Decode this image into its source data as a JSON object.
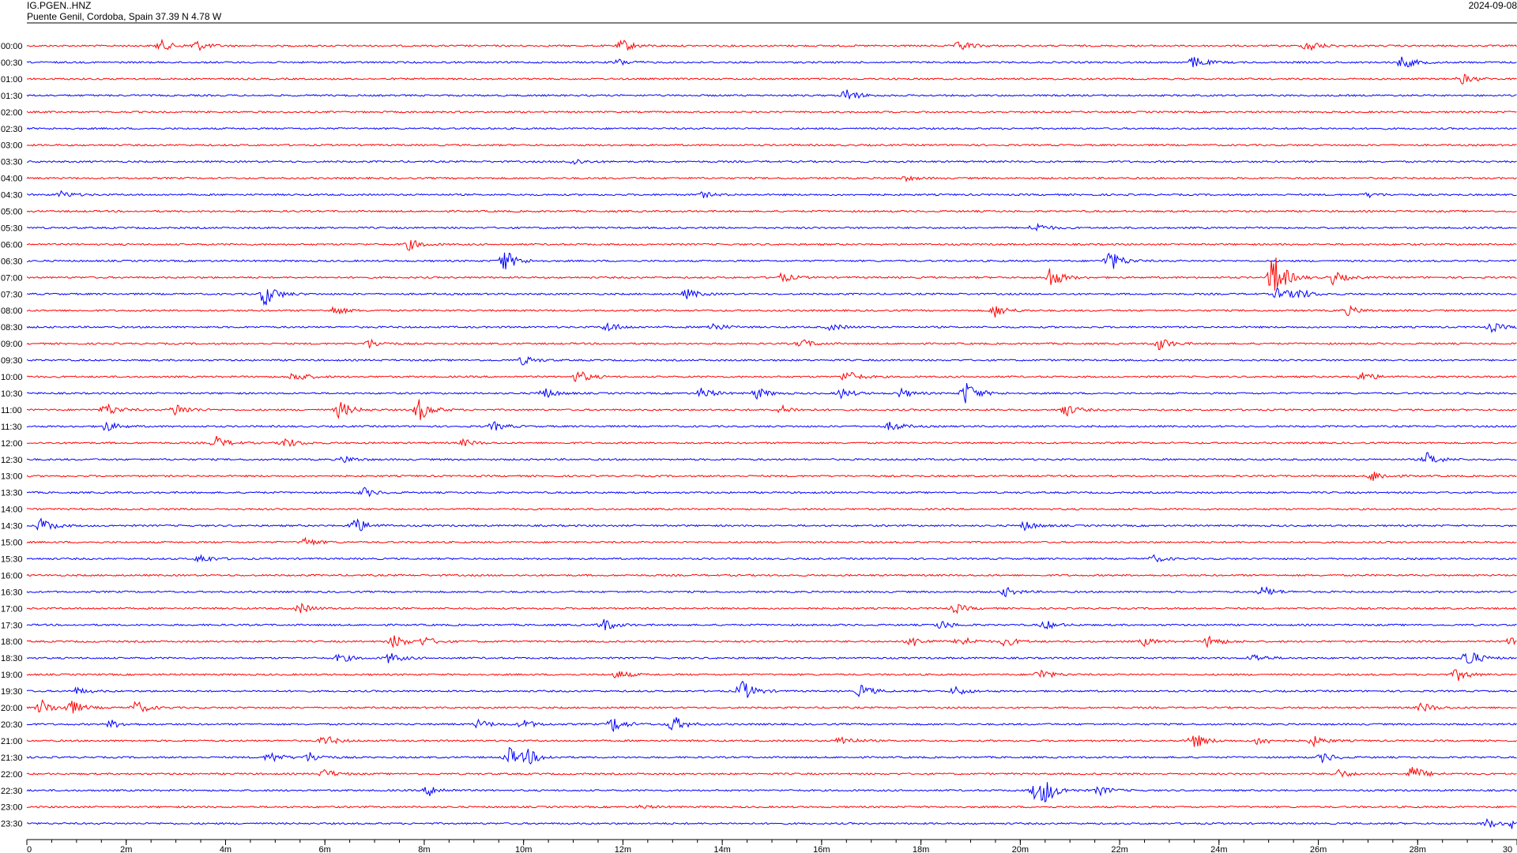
{
  "header": {
    "station": "IG.PGEN..HNZ",
    "location": "Puente Genil, Cordoba, Spain  37.39 N 4.78 W",
    "date": "2024-09-08"
  },
  "colors": {
    "even_trace": "#ff0000",
    "odd_trace": "#0000ff",
    "axis": "#000000"
  },
  "chart_data": {
    "type": "line",
    "title": "",
    "xlabel": "",
    "ylabel": "",
    "xlim": [
      0,
      30
    ],
    "x_unit": "minutes",
    "x_ticks": [
      {
        "value": 0,
        "label": "0"
      },
      {
        "value": 2,
        "label": "2m"
      },
      {
        "value": 4,
        "label": "4m"
      },
      {
        "value": 6,
        "label": "6m"
      },
      {
        "value": 8,
        "label": "8m"
      },
      {
        "value": 10,
        "label": "10m"
      },
      {
        "value": 12,
        "label": "12m"
      },
      {
        "value": 14,
        "label": "14m"
      },
      {
        "value": 16,
        "label": "16m"
      },
      {
        "value": 18,
        "label": "18m"
      },
      {
        "value": 20,
        "label": "20m"
      },
      {
        "value": 22,
        "label": "22m"
      },
      {
        "value": 24,
        "label": "24m"
      },
      {
        "value": 26,
        "label": "26m"
      },
      {
        "value": 28,
        "label": "28m"
      },
      {
        "value": 30,
        "label": "30"
      }
    ],
    "rows": [
      {
        "label": "00:00",
        "events": [
          [
            2.7,
            0.5
          ],
          [
            3.4,
            0.5
          ],
          [
            12.0,
            0.55
          ],
          [
            18.8,
            0.5
          ],
          [
            25.8,
            0.55
          ]
        ]
      },
      {
        "label": "00:30",
        "events": [
          [
            11.9,
            0.3
          ],
          [
            23.5,
            0.55
          ],
          [
            27.7,
            0.6
          ]
        ]
      },
      {
        "label": "01:00",
        "events": [
          [
            28.9,
            0.45
          ]
        ]
      },
      {
        "label": "01:30",
        "events": [
          [
            16.5,
            0.6
          ]
        ]
      },
      {
        "label": "02:00",
        "events": []
      },
      {
        "label": "02:30",
        "events": []
      },
      {
        "label": "03:00",
        "events": []
      },
      {
        "label": "03:30",
        "events": [
          [
            11.0,
            0.3
          ]
        ]
      },
      {
        "label": "04:00",
        "events": [
          [
            17.7,
            0.2
          ]
        ]
      },
      {
        "label": "04:30",
        "events": [
          [
            0.7,
            0.3
          ],
          [
            13.6,
            0.25
          ],
          [
            27.0,
            0.2
          ]
        ]
      },
      {
        "label": "05:00",
        "events": []
      },
      {
        "label": "05:30",
        "events": [
          [
            20.3,
            0.45
          ]
        ]
      },
      {
        "label": "06:00",
        "events": [
          [
            7.7,
            0.5
          ]
        ]
      },
      {
        "label": "06:30",
        "events": [
          [
            9.6,
            1.1
          ],
          [
            21.8,
            1.0
          ]
        ]
      },
      {
        "label": "07:00",
        "events": [
          [
            15.2,
            0.4
          ],
          [
            20.6,
            1.0
          ],
          [
            25.1,
            2.3
          ],
          [
            26.3,
            0.6
          ]
        ]
      },
      {
        "label": "07:30",
        "events": [
          [
            4.8,
            1.1
          ],
          [
            13.3,
            0.45
          ],
          [
            25.2,
            0.6
          ],
          [
            25.6,
            0.45
          ]
        ]
      },
      {
        "label": "08:00",
        "events": [
          [
            6.2,
            0.4
          ],
          [
            19.5,
            0.6
          ],
          [
            26.6,
            0.4
          ]
        ]
      },
      {
        "label": "08:30",
        "events": [
          [
            11.7,
            0.45
          ],
          [
            13.8,
            0.4
          ],
          [
            16.2,
            0.3
          ],
          [
            29.5,
            0.4
          ]
        ]
      },
      {
        "label": "09:00",
        "events": [
          [
            6.9,
            0.4
          ],
          [
            15.6,
            0.4
          ],
          [
            22.8,
            0.6
          ]
        ]
      },
      {
        "label": "09:30",
        "events": [
          [
            10.0,
            0.4
          ]
        ]
      },
      {
        "label": "10:00",
        "events": [
          [
            5.4,
            0.5
          ],
          [
            11.1,
            0.6
          ],
          [
            16.5,
            0.6
          ],
          [
            26.9,
            0.45
          ]
        ]
      },
      {
        "label": "10:30",
        "events": [
          [
            10.4,
            0.5
          ],
          [
            13.6,
            0.5
          ],
          [
            14.7,
            0.5
          ],
          [
            16.4,
            0.45
          ],
          [
            17.6,
            0.4
          ],
          [
            18.9,
            1.1
          ]
        ]
      },
      {
        "label": "11:00",
        "events": [
          [
            1.6,
            0.6
          ],
          [
            3.0,
            0.6
          ],
          [
            6.3,
            0.8
          ],
          [
            7.9,
            1.0
          ],
          [
            15.2,
            0.35
          ],
          [
            20.9,
            0.6
          ]
        ]
      },
      {
        "label": "11:30",
        "events": [
          [
            1.6,
            0.45
          ],
          [
            9.4,
            0.4
          ],
          [
            17.4,
            0.45
          ]
        ]
      },
      {
        "label": "12:00",
        "events": [
          [
            3.8,
            0.6
          ],
          [
            5.2,
            0.5
          ],
          [
            8.8,
            0.3
          ]
        ]
      },
      {
        "label": "12:30",
        "events": [
          [
            6.4,
            0.3
          ],
          [
            28.2,
            0.6
          ]
        ]
      },
      {
        "label": "13:00",
        "events": [
          [
            27.1,
            0.5
          ]
        ]
      },
      {
        "label": "13:30",
        "events": [
          [
            6.8,
            0.4
          ]
        ]
      },
      {
        "label": "14:00",
        "events": []
      },
      {
        "label": "14:30",
        "events": [
          [
            0.3,
            0.7
          ],
          [
            6.6,
            0.8
          ],
          [
            20.1,
            0.4
          ]
        ]
      },
      {
        "label": "15:00",
        "events": [
          [
            5.6,
            0.4
          ]
        ]
      },
      {
        "label": "15:30",
        "events": [
          [
            3.5,
            0.4
          ],
          [
            22.7,
            0.3
          ]
        ]
      },
      {
        "label": "16:00",
        "events": []
      },
      {
        "label": "16:30",
        "events": [
          [
            19.7,
            0.4
          ],
          [
            24.9,
            0.5
          ]
        ]
      },
      {
        "label": "17:00",
        "events": [
          [
            5.5,
            0.45
          ],
          [
            18.7,
            0.4
          ]
        ]
      },
      {
        "label": "17:30",
        "events": [
          [
            11.6,
            0.6
          ],
          [
            18.4,
            0.4
          ],
          [
            20.5,
            0.4
          ]
        ]
      },
      {
        "label": "18:00",
        "events": [
          [
            7.4,
            0.6
          ],
          [
            8.0,
            0.4
          ],
          [
            17.8,
            0.5
          ],
          [
            18.8,
            0.5
          ],
          [
            19.7,
            0.45
          ],
          [
            22.5,
            0.35
          ],
          [
            23.8,
            0.55
          ],
          [
            29.9,
            0.45
          ]
        ]
      },
      {
        "label": "18:30",
        "events": [
          [
            6.3,
            0.4
          ],
          [
            7.3,
            0.5
          ],
          [
            24.7,
            0.35
          ],
          [
            29.0,
            0.9
          ]
        ]
      },
      {
        "label": "19:00",
        "events": [
          [
            11.9,
            0.4
          ],
          [
            20.4,
            0.5
          ],
          [
            28.8,
            0.55
          ]
        ]
      },
      {
        "label": "19:30",
        "events": [
          [
            1.0,
            0.3
          ],
          [
            14.4,
            1.0
          ],
          [
            16.8,
            0.6
          ],
          [
            18.7,
            0.4
          ]
        ]
      },
      {
        "label": "20:00",
        "events": [
          [
            0.3,
            0.7
          ],
          [
            0.9,
            0.6
          ],
          [
            2.2,
            0.6
          ],
          [
            28.1,
            0.45
          ]
        ]
      },
      {
        "label": "20:30",
        "events": [
          [
            1.7,
            0.35
          ],
          [
            9.1,
            0.4
          ],
          [
            10.0,
            0.4
          ],
          [
            11.8,
            0.7
          ],
          [
            13.0,
            0.8
          ]
        ]
      },
      {
        "label": "21:00",
        "events": [
          [
            6.0,
            0.5
          ],
          [
            16.4,
            0.45
          ],
          [
            23.5,
            0.7
          ],
          [
            24.8,
            0.4
          ],
          [
            25.9,
            0.45
          ]
        ]
      },
      {
        "label": "21:30",
        "events": [
          [
            4.9,
            0.5
          ],
          [
            5.7,
            0.45
          ],
          [
            9.7,
            0.9
          ],
          [
            10.1,
            0.6
          ],
          [
            26.1,
            0.45
          ]
        ]
      },
      {
        "label": "22:00",
        "events": [
          [
            6.0,
            0.4
          ],
          [
            26.4,
            0.4
          ],
          [
            27.9,
            0.75
          ]
        ]
      },
      {
        "label": "22:30",
        "events": [
          [
            8.1,
            0.5
          ],
          [
            20.3,
            0.8
          ],
          [
            20.5,
            0.9
          ],
          [
            21.6,
            0.4
          ]
        ]
      },
      {
        "label": "23:00",
        "events": [
          [
            12.4,
            0.15
          ]
        ]
      },
      {
        "label": "23:30",
        "events": [
          [
            29.4,
            0.4
          ],
          [
            29.9,
            0.45
          ]
        ]
      }
    ]
  }
}
